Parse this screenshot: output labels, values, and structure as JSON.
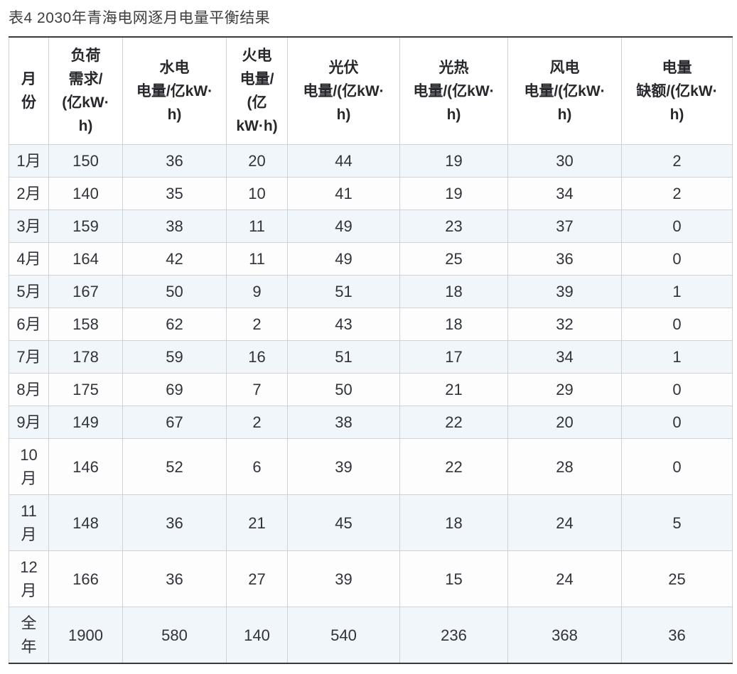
{
  "caption": "表4 2030年青海电网逐月电量平衡结果",
  "colors": {
    "stripe_row_bg": "#f1f6fb",
    "plain_row_bg": "#fdfdfe",
    "grid_border": "#cfd2d6",
    "heavy_rule": "#3a3a3a",
    "text": "#30343a"
  },
  "table": {
    "columns": [
      {
        "id": "month",
        "label": "月\n份"
      },
      {
        "id": "load-demand",
        "label": "负荷\n需求/\n(亿kW·\nh)"
      },
      {
        "id": "hydro",
        "label": "水电\n电量/亿kW·\nh)"
      },
      {
        "id": "thermal",
        "label": "火电\n电量/\n(亿\nkW·h)"
      },
      {
        "id": "solar-pv",
        "label": "光伏\n电量/(亿kW·\nh)"
      },
      {
        "id": "solar-csp",
        "label": "光热\n电量/(亿kW·\nh)"
      },
      {
        "id": "wind",
        "label": "风电\n电量/(亿kW·\nh)"
      },
      {
        "id": "deficit",
        "label": "电量\n缺额/(亿kW·\nh)"
      }
    ],
    "rows": [
      {
        "month": "1月",
        "values": [
          "150",
          "36",
          "20",
          "44",
          "19",
          "30",
          "2"
        ]
      },
      {
        "month": "2月",
        "values": [
          "140",
          "35",
          "10",
          "41",
          "19",
          "34",
          "2"
        ]
      },
      {
        "month": "3月",
        "values": [
          "159",
          "38",
          "11",
          "49",
          "23",
          "37",
          "0"
        ]
      },
      {
        "month": "4月",
        "values": [
          "164",
          "42",
          "11",
          "49",
          "25",
          "36",
          "0"
        ]
      },
      {
        "month": "5月",
        "values": [
          "167",
          "50",
          "9",
          "51",
          "18",
          "39",
          "1"
        ]
      },
      {
        "month": "6月",
        "values": [
          "158",
          "62",
          "2",
          "43",
          "18",
          "32",
          "0"
        ]
      },
      {
        "month": "7月",
        "values": [
          "178",
          "59",
          "16",
          "51",
          "17",
          "34",
          "1"
        ]
      },
      {
        "month": "8月",
        "values": [
          "175",
          "69",
          "7",
          "50",
          "21",
          "29",
          "0"
        ]
      },
      {
        "month": "9月",
        "values": [
          "149",
          "67",
          "2",
          "38",
          "22",
          "20",
          "0"
        ]
      },
      {
        "month": "10\n月",
        "values": [
          "146",
          "52",
          "6",
          "39",
          "22",
          "28",
          "0"
        ]
      },
      {
        "month": "11\n月",
        "values": [
          "148",
          "36",
          "21",
          "45",
          "18",
          "24",
          "5"
        ]
      },
      {
        "month": "12\n月",
        "values": [
          "166",
          "36",
          "27",
          "39",
          "15",
          "24",
          "25"
        ]
      },
      {
        "month": "全\n年",
        "values": [
          "1900",
          "580",
          "140",
          "540",
          "236",
          "368",
          "36"
        ]
      }
    ]
  }
}
